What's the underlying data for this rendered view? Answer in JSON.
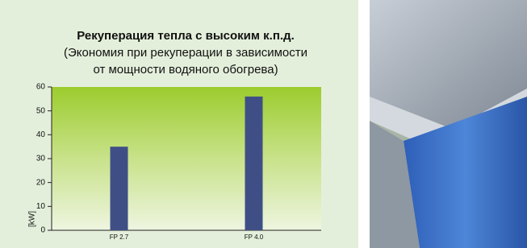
{
  "chart_data": {
    "type": "bar",
    "title": "Рекуперация тепла с высоким к.п.д.",
    "subtitle": [
      "(Экономия при рекуперации в зависимости",
      "от мощности водяного обогрева)"
    ],
    "y_label": "[kW]",
    "categories": [
      "FP 2.7",
      "FP 4.0"
    ],
    "values": [
      35,
      56
    ],
    "color": "#3f4f86",
    "ylim": [
      0,
      60
    ],
    "yticks": [
      0,
      10,
      20,
      30,
      40,
      50,
      60
    ]
  }
}
